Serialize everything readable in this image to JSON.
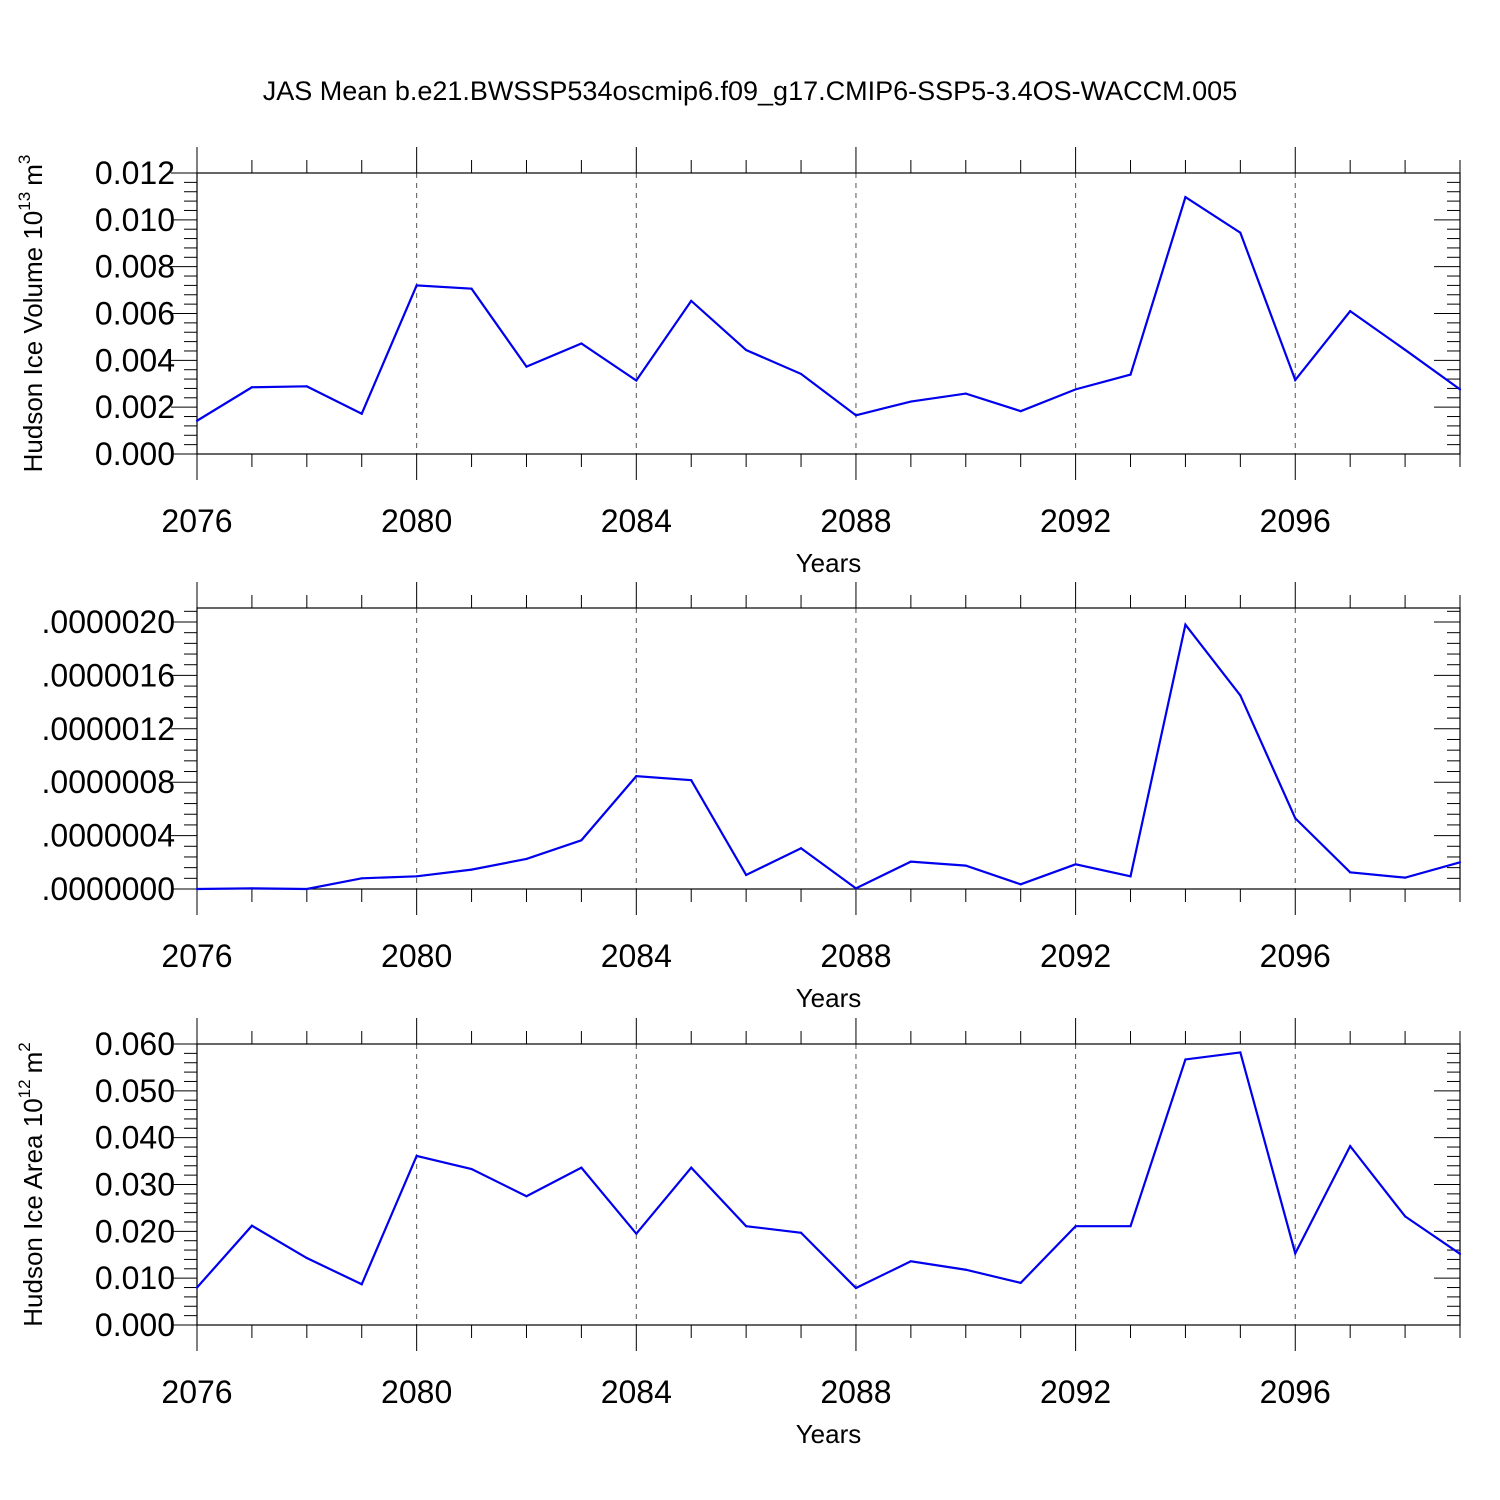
{
  "figure": {
    "title": "JAS Mean b.e21.BWSSP534oscmip6.f09_g17.CMIP6-SSP5-3.4OS-WACCM.005",
    "line_color": "#0000ee"
  },
  "chart_data": [
    {
      "type": "line",
      "title": "",
      "xlabel": "Years",
      "ylabel": "Hudson Ice Volume 10",
      "ylabel_exp": "13",
      "ylabel_unit": "m",
      "ylabel_unit_exp": "3",
      "xlim": [
        2076,
        2099
      ],
      "ylim": [
        0,
        0.012
      ],
      "xticks": [
        2076,
        2080,
        2084,
        2088,
        2092,
        2096
      ],
      "xtick_labels": [
        "2076",
        "2080",
        "2084",
        "2088",
        "2092",
        "2096"
      ],
      "yticks": [
        0,
        0.002,
        0.004,
        0.006,
        0.008,
        0.01,
        0.012
      ],
      "ytick_labels": [
        "0.000",
        "0.002",
        "0.004",
        "0.006",
        "0.008",
        "0.010",
        "0.012"
      ],
      "grid": "vertical dashed at major x ticks",
      "x": [
        2076,
        2077,
        2078,
        2079,
        2080,
        2081,
        2082,
        2083,
        2084,
        2085,
        2086,
        2087,
        2088,
        2089,
        2090,
        2091,
        2092,
        2093,
        2094,
        2095,
        2096,
        2097,
        2098,
        2099
      ],
      "values": [
        0.00142,
        0.00285,
        0.00289,
        0.00172,
        0.0072,
        0.00706,
        0.00373,
        0.00472,
        0.00314,
        0.00654,
        0.00444,
        0.00342,
        0.00165,
        0.00224,
        0.00258,
        0.00183,
        0.00276,
        0.00339,
        0.01097,
        0.00945,
        0.00316,
        0.0061,
        0.00445,
        0.00276
      ]
    },
    {
      "type": "line",
      "title": "",
      "xlabel": "Years",
      "ylabel": "",
      "xlim": [
        2076,
        2099
      ],
      "ylim": [
        0,
        2.1e-06
      ],
      "xticks": [
        2076,
        2080,
        2084,
        2088,
        2092,
        2096
      ],
      "xtick_labels": [
        "2076",
        "2080",
        "2084",
        "2088",
        "2092",
        "2096"
      ],
      "yticks": [
        0,
        4e-07,
        8e-07,
        1.2e-06,
        1.6e-06,
        2e-06
      ],
      "ytick_labels": [
        ".0000000",
        ".0000004",
        ".0000008",
        ".0000012",
        ".0000016",
        ".0000020"
      ],
      "grid": "vertical dashed at major x ticks",
      "x": [
        2076,
        2077,
        2078,
        2079,
        2080,
        2081,
        2082,
        2083,
        2084,
        2085,
        2086,
        2087,
        2088,
        2089,
        2090,
        2091,
        2092,
        2093,
        2094,
        2095,
        2096,
        2097,
        2098,
        2099
      ],
      "values": [
        0.0,
        5e-09,
        0.0,
        8e-08,
        9.5e-08,
        1.45e-07,
        2.25e-07,
        3.65e-07,
        8.45e-07,
        8.15e-07,
        1.05e-07,
        3.05e-07,
        5e-09,
        2.05e-07,
        1.75e-07,
        3.5e-08,
        1.85e-07,
        9.5e-08,
        1.98e-06,
        1.45e-06,
        5.3e-07,
        1.25e-07,
        8.5e-08,
        2e-07
      ]
    },
    {
      "type": "line",
      "title": "",
      "xlabel": "Years",
      "ylabel": "Hudson Ice Area 10",
      "ylabel_exp": "12",
      "ylabel_unit": "m",
      "ylabel_unit_exp": "2",
      "xlim": [
        2076,
        2099
      ],
      "ylim": [
        0,
        0.06
      ],
      "xticks": [
        2076,
        2080,
        2084,
        2088,
        2092,
        2096
      ],
      "xtick_labels": [
        "2076",
        "2080",
        "2084",
        "2088",
        "2092",
        "2096"
      ],
      "yticks": [
        0,
        0.01,
        0.02,
        0.03,
        0.04,
        0.05,
        0.06
      ],
      "ytick_labels": [
        "0.000",
        "0.010",
        "0.020",
        "0.030",
        "0.040",
        "0.050",
        "0.060"
      ],
      "grid": "vertical dashed at major x ticks",
      "x": [
        2076,
        2077,
        2078,
        2079,
        2080,
        2081,
        2082,
        2083,
        2084,
        2085,
        2086,
        2087,
        2088,
        2089,
        2090,
        2091,
        2092,
        2093,
        2094,
        2095,
        2096,
        2097,
        2098,
        2099
      ],
      "values": [
        0.008,
        0.0212,
        0.0143,
        0.0087,
        0.0361,
        0.0333,
        0.0275,
        0.0336,
        0.0195,
        0.0336,
        0.0211,
        0.0197,
        0.0079,
        0.0136,
        0.0118,
        0.009,
        0.0211,
        0.0211,
        0.0567,
        0.0582,
        0.0153,
        0.0382,
        0.0232,
        0.0152
      ]
    }
  ]
}
